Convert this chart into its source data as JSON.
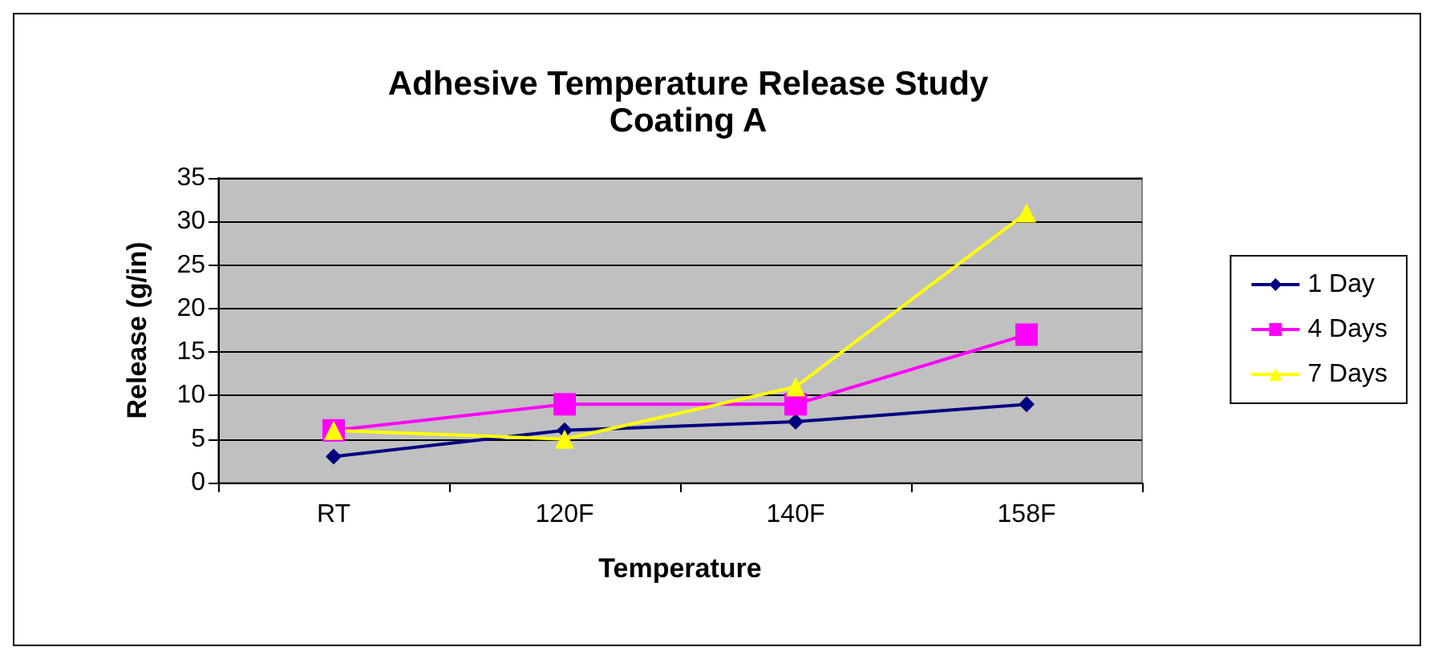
{
  "chart_data": {
    "type": "line",
    "title": "Adhesive Temperature Release Study",
    "subtitle": "Coating A",
    "xlabel": "Temperature",
    "ylabel": "Release (g/in)",
    "categories": [
      "RT",
      "120F",
      "140F",
      "158F"
    ],
    "series": [
      {
        "name": "1 Day",
        "color": "#000080",
        "marker": "diamond",
        "values": [
          3,
          6,
          7,
          9
        ]
      },
      {
        "name": "4 Days",
        "color": "#ff00ff",
        "marker": "square",
        "values": [
          6,
          9,
          9,
          17
        ]
      },
      {
        "name": "7 Days",
        "color": "#ffff00",
        "marker": "triangle",
        "values": [
          6,
          5,
          11,
          31
        ]
      }
    ],
    "ylim": [
      0,
      35
    ],
    "yticks": [
      0,
      5,
      10,
      15,
      20,
      25,
      30,
      35
    ],
    "grid": "y",
    "legend": "right",
    "line_style": "solid"
  }
}
